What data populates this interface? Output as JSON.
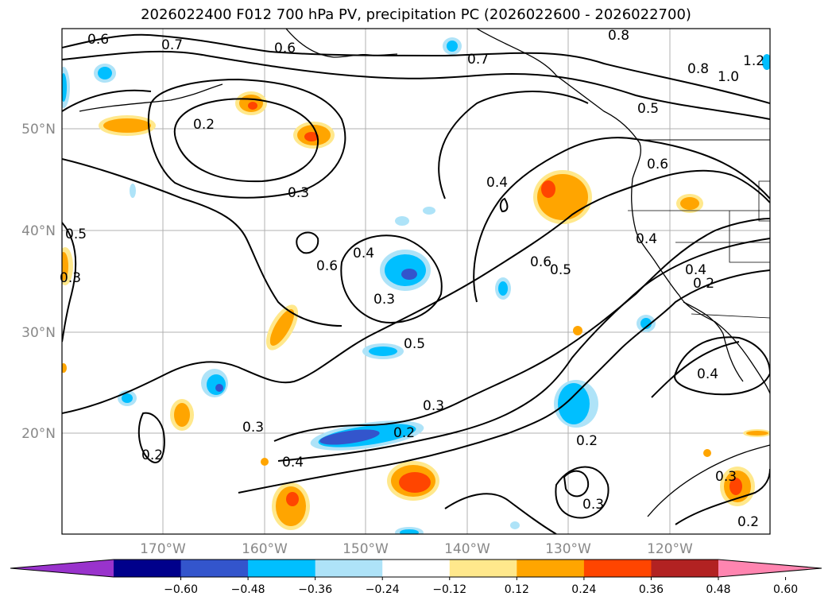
{
  "title": "2026022400 F012 700 hPa PV, precipitation PC (2026022600 - 2026022700)",
  "axes": {
    "lat_labels": [
      "50°N",
      "40°N",
      "30°N",
      "20°N"
    ],
    "lon_labels": [
      "170°W",
      "160°W",
      "150°W",
      "140°W",
      "130°W",
      "120°W"
    ]
  },
  "contour_labels": [
    "0.6",
    "0.7",
    "0.6",
    "0.7",
    "0.8",
    "1.0",
    "1.2",
    "0.8",
    "0.5",
    "0.2",
    "0.3",
    "0.4",
    "0.6",
    "0.4",
    "0.3",
    "0.5",
    "0.6",
    "0.4",
    "0.6",
    "0.5",
    "0.4",
    "0.4",
    "0.3",
    "0.5",
    "0.3",
    "0.2",
    "0.3",
    "0.2",
    "0.4",
    "0.2",
    "0.3",
    "0.2",
    "0.3",
    "0.2"
  ],
  "colorbar": {
    "ticks": [
      "−0.60",
      "−0.48",
      "−0.36",
      "−0.24",
      "−0.12",
      "0.12",
      "0.24",
      "0.36",
      "0.48",
      "0.60"
    ],
    "colors": [
      "#9933cc",
      "#00008b",
      "#3355cc",
      "#00bfff",
      "#aee3f8",
      "#ffffff",
      "#ffe88c",
      "#ffa500",
      "#ff4500",
      "#b22222",
      "#ff85b0"
    ]
  }
}
